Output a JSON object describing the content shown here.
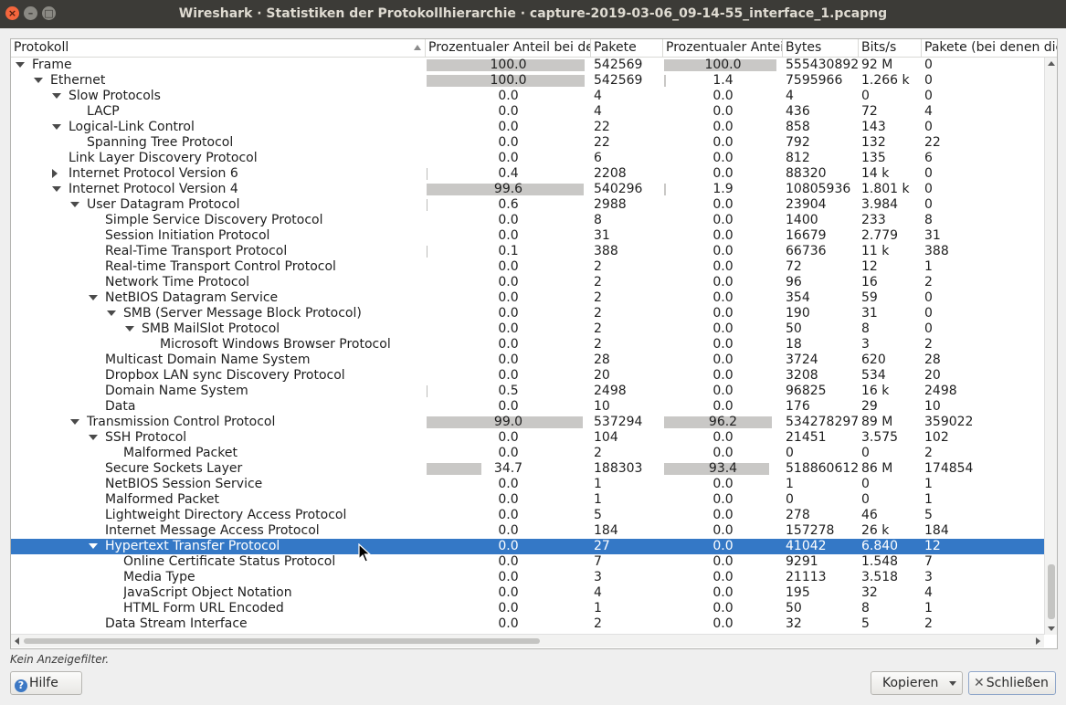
{
  "window": {
    "title": "Wireshark · Statistiken der Protokollhierarchie · capture-2019-03-06_09-14-55_interface_1.pcapng"
  },
  "columns": [
    "Protokoll",
    "Prozentualer Anteil bei den Paketen",
    "Pakete",
    "Prozentualer Anteil bei den Bytes",
    "Bytes",
    "Bits/s",
    "Pakete (bei denen dieses Protokoll das letzte ist)"
  ],
  "rows": [
    {
      "name": "Frame",
      "level": 0,
      "exp": "down",
      "pp": "100.0",
      "ppv": 100.0,
      "pk": "542569",
      "pb": "100.0",
      "pbv": 100.0,
      "by": "555430892",
      "bs": "92 M",
      "ep": "0"
    },
    {
      "name": "Ethernet",
      "level": 1,
      "exp": "down",
      "pp": "100.0",
      "ppv": 100.0,
      "pk": "542569",
      "pb": "1.4",
      "pbv": 1.4,
      "by": "7595966",
      "bs": "1.266 k",
      "ep": "0"
    },
    {
      "name": "Slow Protocols",
      "level": 2,
      "exp": "down",
      "pp": "0.0",
      "ppv": 0,
      "pk": "4",
      "pb": "0.0",
      "pbv": 0,
      "by": "4",
      "bs": "0",
      "ep": "0"
    },
    {
      "name": "LACP",
      "level": 3,
      "exp": "",
      "pp": "0.0",
      "ppv": 0,
      "pk": "4",
      "pb": "0.0",
      "pbv": 0,
      "by": "436",
      "bs": "72",
      "ep": "4"
    },
    {
      "name": "Logical-Link Control",
      "level": 2,
      "exp": "down",
      "pp": "0.0",
      "ppv": 0,
      "pk": "22",
      "pb": "0.0",
      "pbv": 0,
      "by": "858",
      "bs": "143",
      "ep": "0"
    },
    {
      "name": "Spanning Tree Protocol",
      "level": 3,
      "exp": "",
      "pp": "0.0",
      "ppv": 0,
      "pk": "22",
      "pb": "0.0",
      "pbv": 0,
      "by": "792",
      "bs": "132",
      "ep": "22"
    },
    {
      "name": "Link Layer Discovery Protocol",
      "level": 2,
      "exp": "",
      "pp": "0.0",
      "ppv": 0,
      "pk": "6",
      "pb": "0.0",
      "pbv": 0,
      "by": "812",
      "bs": "135",
      "ep": "6"
    },
    {
      "name": "Internet Protocol Version 6",
      "level": 2,
      "exp": "right",
      "pp": "0.4",
      "ppv": 0.4,
      "pk": "2208",
      "pb": "0.0",
      "pbv": 0,
      "by": "88320",
      "bs": "14 k",
      "ep": "0"
    },
    {
      "name": "Internet Protocol Version 4",
      "level": 2,
      "exp": "down",
      "pp": "99.6",
      "ppv": 99.6,
      "pk": "540296",
      "pb": "1.9",
      "pbv": 1.9,
      "by": "10805936",
      "bs": "1.801 k",
      "ep": "0"
    },
    {
      "name": "User Datagram Protocol",
      "level": 3,
      "exp": "down",
      "pp": "0.6",
      "ppv": 0.6,
      "pk": "2988",
      "pb": "0.0",
      "pbv": 0,
      "by": "23904",
      "bs": "3.984",
      "ep": "0"
    },
    {
      "name": "Simple Service Discovery Protocol",
      "level": 4,
      "exp": "",
      "pp": "0.0",
      "ppv": 0,
      "pk": "8",
      "pb": "0.0",
      "pbv": 0,
      "by": "1400",
      "bs": "233",
      "ep": "8"
    },
    {
      "name": "Session Initiation Protocol",
      "level": 4,
      "exp": "",
      "pp": "0.0",
      "ppv": 0,
      "pk": "31",
      "pb": "0.0",
      "pbv": 0,
      "by": "16679",
      "bs": "2.779",
      "ep": "31"
    },
    {
      "name": "Real-Time Transport Protocol",
      "level": 4,
      "exp": "",
      "pp": "0.1",
      "ppv": 0.1,
      "pk": "388",
      "pb": "0.0",
      "pbv": 0,
      "by": "66736",
      "bs": "11 k",
      "ep": "388"
    },
    {
      "name": "Real-time Transport Control Protocol",
      "level": 4,
      "exp": "",
      "pp": "0.0",
      "ppv": 0,
      "pk": "2",
      "pb": "0.0",
      "pbv": 0,
      "by": "72",
      "bs": "12",
      "ep": "1"
    },
    {
      "name": "Network Time Protocol",
      "level": 4,
      "exp": "",
      "pp": "0.0",
      "ppv": 0,
      "pk": "2",
      "pb": "0.0",
      "pbv": 0,
      "by": "96",
      "bs": "16",
      "ep": "2"
    },
    {
      "name": "NetBIOS Datagram Service",
      "level": 4,
      "exp": "down",
      "pp": "0.0",
      "ppv": 0,
      "pk": "2",
      "pb": "0.0",
      "pbv": 0,
      "by": "354",
      "bs": "59",
      "ep": "0"
    },
    {
      "name": "SMB (Server Message Block Protocol)",
      "level": 5,
      "exp": "down",
      "pp": "0.0",
      "ppv": 0,
      "pk": "2",
      "pb": "0.0",
      "pbv": 0,
      "by": "190",
      "bs": "31",
      "ep": "0"
    },
    {
      "name": "SMB MailSlot Protocol",
      "level": 6,
      "exp": "down",
      "pp": "0.0",
      "ppv": 0,
      "pk": "2",
      "pb": "0.0",
      "pbv": 0,
      "by": "50",
      "bs": "8",
      "ep": "0"
    },
    {
      "name": "Microsoft Windows Browser Protocol",
      "level": 7,
      "exp": "",
      "pp": "0.0",
      "ppv": 0,
      "pk": "2",
      "pb": "0.0",
      "pbv": 0,
      "by": "18",
      "bs": "3",
      "ep": "2"
    },
    {
      "name": "Multicast Domain Name System",
      "level": 4,
      "exp": "",
      "pp": "0.0",
      "ppv": 0,
      "pk": "28",
      "pb": "0.0",
      "pbv": 0,
      "by": "3724",
      "bs": "620",
      "ep": "28"
    },
    {
      "name": "Dropbox LAN sync Discovery Protocol",
      "level": 4,
      "exp": "",
      "pp": "0.0",
      "ppv": 0,
      "pk": "20",
      "pb": "0.0",
      "pbv": 0,
      "by": "3208",
      "bs": "534",
      "ep": "20"
    },
    {
      "name": "Domain Name System",
      "level": 4,
      "exp": "",
      "pp": "0.5",
      "ppv": 0.5,
      "pk": "2498",
      "pb": "0.0",
      "pbv": 0,
      "by": "96825",
      "bs": "16 k",
      "ep": "2498"
    },
    {
      "name": "Data",
      "level": 4,
      "exp": "",
      "pp": "0.0",
      "ppv": 0,
      "pk": "10",
      "pb": "0.0",
      "pbv": 0,
      "by": "176",
      "bs": "29",
      "ep": "10"
    },
    {
      "name": "Transmission Control Protocol",
      "level": 3,
      "exp": "down",
      "pp": "99.0",
      "ppv": 99.0,
      "pk": "537294",
      "pb": "96.2",
      "pbv": 96.2,
      "by": "534278297",
      "bs": "89 M",
      "ep": "359022"
    },
    {
      "name": "SSH Protocol",
      "level": 4,
      "exp": "down",
      "pp": "0.0",
      "ppv": 0,
      "pk": "104",
      "pb": "0.0",
      "pbv": 0,
      "by": "21451",
      "bs": "3.575",
      "ep": "102"
    },
    {
      "name": "Malformed Packet",
      "level": 5,
      "exp": "",
      "pp": "0.0",
      "ppv": 0,
      "pk": "2",
      "pb": "0.0",
      "pbv": 0,
      "by": "0",
      "bs": "0",
      "ep": "2"
    },
    {
      "name": "Secure Sockets Layer",
      "level": 4,
      "exp": "",
      "pp": "34.7",
      "ppv": 34.7,
      "pk": "188303",
      "pb": "93.4",
      "pbv": 93.4,
      "by": "518860612",
      "bs": "86 M",
      "ep": "174854"
    },
    {
      "name": "NetBIOS Session Service",
      "level": 4,
      "exp": "",
      "pp": "0.0",
      "ppv": 0,
      "pk": "1",
      "pb": "0.0",
      "pbv": 0,
      "by": "1",
      "bs": "0",
      "ep": "1"
    },
    {
      "name": "Malformed Packet",
      "level": 4,
      "exp": "",
      "pp": "0.0",
      "ppv": 0,
      "pk": "1",
      "pb": "0.0",
      "pbv": 0,
      "by": "0",
      "bs": "0",
      "ep": "1"
    },
    {
      "name": "Lightweight Directory Access Protocol",
      "level": 4,
      "exp": "",
      "pp": "0.0",
      "ppv": 0,
      "pk": "5",
      "pb": "0.0",
      "pbv": 0,
      "by": "278",
      "bs": "46",
      "ep": "5"
    },
    {
      "name": "Internet Message Access Protocol",
      "level": 4,
      "exp": "",
      "pp": "0.0",
      "ppv": 0,
      "pk": "184",
      "pb": "0.0",
      "pbv": 0,
      "by": "157278",
      "bs": "26 k",
      "ep": "184"
    },
    {
      "name": "Hypertext Transfer Protocol",
      "level": 4,
      "exp": "down",
      "selected": true,
      "pp": "0.0",
      "ppv": 0,
      "pk": "27",
      "pb": "0.0",
      "pbv": 0,
      "by": "41042",
      "bs": "6.840",
      "ep": "12"
    },
    {
      "name": "Online Certificate Status Protocol",
      "level": 5,
      "exp": "",
      "pp": "0.0",
      "ppv": 0,
      "pk": "7",
      "pb": "0.0",
      "pbv": 0,
      "by": "9291",
      "bs": "1.548",
      "ep": "7"
    },
    {
      "name": "Media Type",
      "level": 5,
      "exp": "",
      "pp": "0.0",
      "ppv": 0,
      "pk": "3",
      "pb": "0.0",
      "pbv": 0,
      "by": "21113",
      "bs": "3.518",
      "ep": "3"
    },
    {
      "name": "JavaScript Object Notation",
      "level": 5,
      "exp": "",
      "pp": "0.0",
      "ppv": 0,
      "pk": "4",
      "pb": "0.0",
      "pbv": 0,
      "by": "195",
      "bs": "32",
      "ep": "4"
    },
    {
      "name": "HTML Form URL Encoded",
      "level": 5,
      "exp": "",
      "pp": "0.0",
      "ppv": 0,
      "pk": "1",
      "pb": "0.0",
      "pbv": 0,
      "by": "50",
      "bs": "8",
      "ep": "1"
    },
    {
      "name": "Data Stream Interface",
      "level": 4,
      "exp": "",
      "pp": "0.0",
      "ppv": 0,
      "pk": "2",
      "pb": "0.0",
      "pbv": 0,
      "by": "32",
      "bs": "5",
      "ep": "2"
    }
  ],
  "footer": {
    "filter_text": "Kein Anzeigefilter.",
    "help_label": "Hilfe",
    "copy_label": "Kopieren",
    "close_label": "Schließen"
  },
  "icons": {
    "help": "help-icon",
    "close": "close-icon",
    "dropdown": "chevron-down-icon"
  }
}
